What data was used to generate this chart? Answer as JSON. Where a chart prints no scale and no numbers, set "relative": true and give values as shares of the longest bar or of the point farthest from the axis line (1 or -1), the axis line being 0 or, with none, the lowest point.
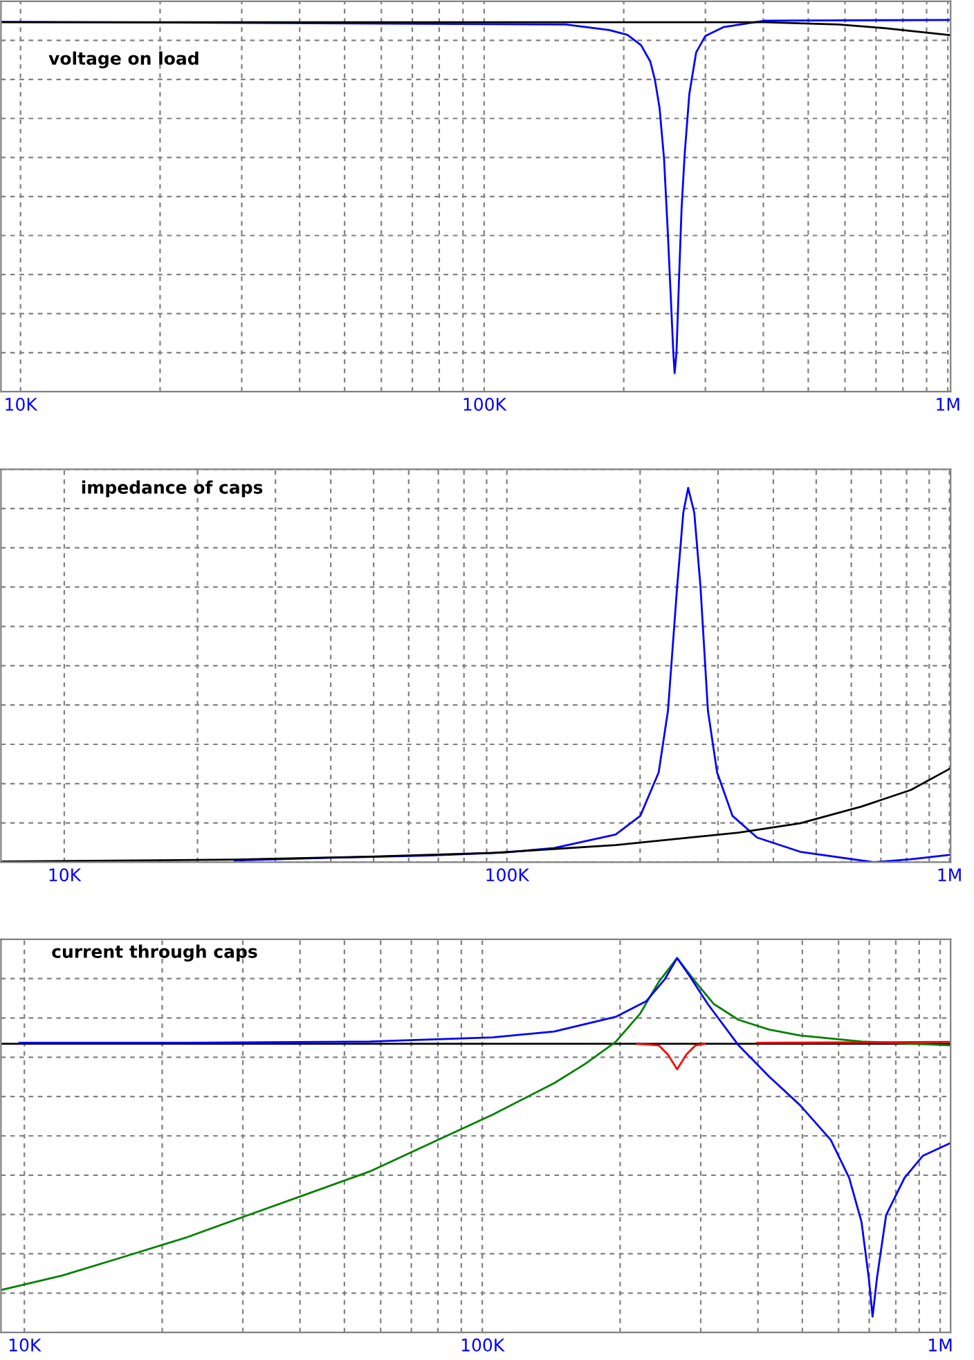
{
  "chart_data": [
    {
      "type": "line",
      "title": "voltage on load",
      "relative": true,
      "log": "x",
      "grid": true,
      "tick_labels": "x",
      "xlim": [
        9075,
        1014000
      ],
      "xticks": [
        {
          "value": 10000,
          "label": "10K"
        },
        {
          "value": 20000,
          "label": null
        },
        {
          "value": 30000,
          "label": null
        },
        {
          "value": 40000,
          "label": null
        },
        {
          "value": 50000,
          "label": null
        },
        {
          "value": 60000,
          "label": null
        },
        {
          "value": 70000,
          "label": null
        },
        {
          "value": 80000,
          "label": null
        },
        {
          "value": 90000,
          "label": null
        },
        {
          "value": 100000,
          "label": "100K"
        },
        {
          "value": 200000,
          "label": null
        },
        {
          "value": 300000,
          "label": null
        },
        {
          "value": 400000,
          "label": null
        },
        {
          "value": 500000,
          "label": null
        },
        {
          "value": 600000,
          "label": null
        },
        {
          "value": 700000,
          "label": null
        },
        {
          "value": 800000,
          "label": null
        },
        {
          "value": 900000,
          "label": null
        },
        {
          "value": 1000000,
          "label": "1M"
        }
      ],
      "series": [
        {
          "color": "#0000ff",
          "x": [
            9075,
            149800,
            185900,
            203700,
            218000,
            228200,
            233500,
            238900,
            244300,
            248900,
            252900,
            255800,
            257500,
            259900,
            262800,
            266500,
            270700,
            277000,
            286600,
            300000,
            328600,
            403300,
            1014000
          ],
          "values": [
            0.995,
            0.988,
            0.973,
            0.96,
            0.932,
            0.888,
            0.839,
            0.764,
            0.627,
            0.429,
            0.242,
            0.106,
            0.05,
            0.106,
            0.28,
            0.491,
            0.64,
            0.801,
            0.913,
            0.957,
            0.981,
            0.998,
            1
          ]
        },
        {
          "color": "#000000",
          "x": [
            9075,
            149800,
            403300,
            580500,
            729200,
            1014000
          ],
          "values": [
            0.994,
            0.994,
            0.994,
            0.988,
            0.978,
            0.959
          ]
        }
      ]
    },
    {
      "type": "line",
      "title": "impedance of caps",
      "relative": true,
      "log": "x",
      "grid": true,
      "tick_labels": "x",
      "xlim": [
        7194,
        1006000
      ],
      "xticks": [
        {
          "value": 10000,
          "label": "10K"
        },
        {
          "value": 20000,
          "label": null
        },
        {
          "value": 30000,
          "label": null
        },
        {
          "value": 40000,
          "label": null
        },
        {
          "value": 50000,
          "label": null
        },
        {
          "value": 60000,
          "label": null
        },
        {
          "value": 70000,
          "label": null
        },
        {
          "value": 80000,
          "label": null
        },
        {
          "value": 90000,
          "label": null
        },
        {
          "value": 100000,
          "label": "100K"
        },
        {
          "value": 200000,
          "label": null
        },
        {
          "value": 300000,
          "label": null
        },
        {
          "value": 400000,
          "label": null
        },
        {
          "value": 500000,
          "label": null
        },
        {
          "value": 600000,
          "label": null
        },
        {
          "value": 700000,
          "label": null
        },
        {
          "value": 800000,
          "label": null
        },
        {
          "value": 900000,
          "label": null
        },
        {
          "value": 1000000,
          "label": "1M"
        }
      ],
      "series": [
        {
          "color": "#0000ff",
          "x": [
            24250,
            40450,
            67480,
            99040,
            127900,
            176100,
            200200,
            220300,
            231200,
            242500,
            250400,
            256800,
            265100,
            273800,
            284600,
            298500,
            323400,
            367600,
            459800,
            674800,
            817600,
            1006000
          ],
          "values": [
            0.005,
            0.012,
            0.018,
            0.026,
            0.038,
            0.074,
            0.124,
            0.24,
            0.405,
            0.736,
            0.934,
            1,
            0.934,
            0.736,
            0.405,
            0.24,
            0.124,
            0.066,
            0.028,
            0,
            0.008,
            0.02
          ]
        },
        {
          "color": "#000000",
          "x": [
            7194,
            24250,
            49010,
            92920,
            176100,
            333900,
            459800,
            633200,
            817600,
            1006000
          ],
          "values": [
            0.002,
            0.007,
            0.015,
            0.025,
            0.046,
            0.079,
            0.104,
            0.149,
            0.193,
            0.251
          ]
        }
      ]
    },
    {
      "type": "line",
      "title": "current through caps",
      "relative": true,
      "log": "x",
      "grid": true,
      "tick_labels": "x",
      "xlim": [
        8890,
        1054000
      ],
      "xticks": [
        {
          "value": 10000,
          "label": "10K"
        },
        {
          "value": 20000,
          "label": null
        },
        {
          "value": 30000,
          "label": null
        },
        {
          "value": 40000,
          "label": null
        },
        {
          "value": 50000,
          "label": null
        },
        {
          "value": 60000,
          "label": null
        },
        {
          "value": 70000,
          "label": null
        },
        {
          "value": 80000,
          "label": null
        },
        {
          "value": 90000,
          "label": null
        },
        {
          "value": 100000,
          "label": "100K"
        },
        {
          "value": 200000,
          "label": null
        },
        {
          "value": 300000,
          "label": null
        },
        {
          "value": 400000,
          "label": null
        },
        {
          "value": 500000,
          "label": null
        },
        {
          "value": 600000,
          "label": null
        },
        {
          "value": 700000,
          "label": null
        },
        {
          "value": 800000,
          "label": null
        },
        {
          "value": 900000,
          "label": null
        },
        {
          "value": 1000000,
          "label": "1M"
        }
      ],
      "series": [
        {
          "color": "#000000",
          "x": [
            8890,
            1054000
          ],
          "values": [
            0.771,
            0.771
          ]
        },
        {
          "color": "#008000",
          "x": [
            8890,
            12100,
            16500,
            22500,
            30600,
            41700,
            56800,
            77400,
            105400,
            143600,
            167600,
            195600,
            221300,
            242800,
            266400,
            292300,
            320600,
            362800,
            423500,
            494300,
            673300,
            1054000
          ],
          "values": [
            0.113,
            0.152,
            0.202,
            0.253,
            0.312,
            0.371,
            0.43,
            0.506,
            0.582,
            0.666,
            0.717,
            0.776,
            0.852,
            0.936,
            1,
            0.936,
            0.877,
            0.835,
            0.809,
            0.793,
            0.777,
            0.767
          ]
        },
        {
          "color": "#ff0000",
          "x": [
            217900,
            242800,
            254400,
            266400,
            279000,
            292300,
            306100,
            362800,
            398100,
            1054000
          ],
          "values": [
            0.771,
            0.767,
            0.742,
            0.703,
            0.742,
            0.767,
            0.771,
            null,
            0.774,
            0.776
          ]
        },
        {
          "color": "#0000ff",
          "x": [
            9750,
            22500,
            56800,
            105400,
            143600,
            195600,
            228200,
            250500,
            266400,
            283400,
            310900,
            362800,
            423500,
            494300,
            576900,
            632800,
            673300,
            698800,
            711800,
            727400,
            761900,
            836000,
            917200,
            1054000
          ],
          "values": [
            0.774,
            0.774,
            0.777,
            0.788,
            0.804,
            0.843,
            0.885,
            0.944,
            1,
            0.953,
            0.877,
            0.767,
            0.683,
            0.607,
            0.514,
            0.413,
            0.295,
            0.143,
            0.042,
            0.143,
            0.313,
            0.413,
            0.472,
            0.506
          ]
        }
      ]
    }
  ]
}
